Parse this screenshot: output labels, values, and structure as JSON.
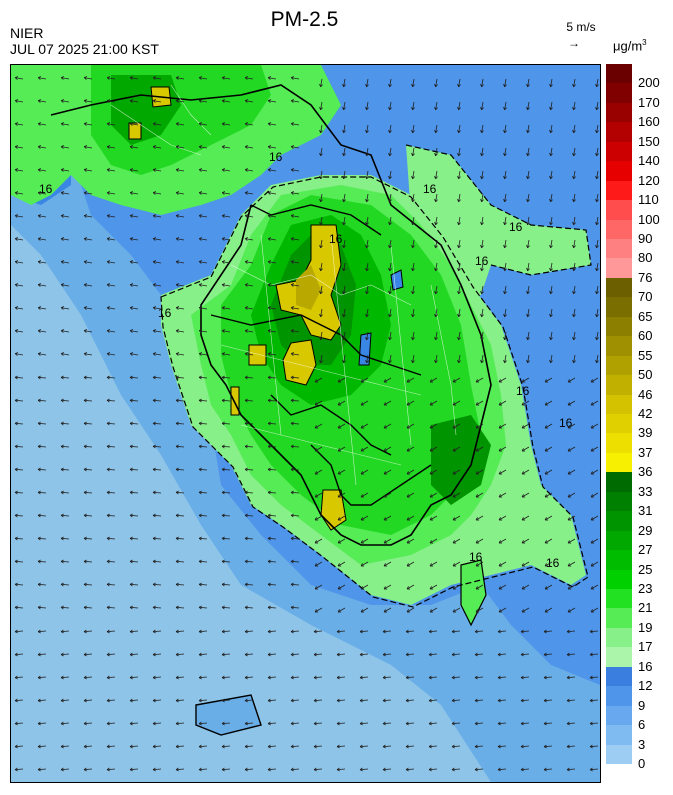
{
  "header": {
    "title": "PM-2.5",
    "agency": "NIER",
    "timestamp": "JUL 07 2025 21:00 KST",
    "wind_scale": "5 m/s",
    "wind_arrow": "→",
    "unit": "μg/m",
    "unit_sup": "3"
  },
  "map": {
    "contour_labels": [
      "16",
      "16",
      "16",
      "16",
      "16",
      "16",
      "16",
      "16",
      "16",
      "16",
      "16"
    ]
  },
  "legend": {
    "labels": [
      "200",
      "170",
      "160",
      "150",
      "140",
      "120",
      "110",
      "100",
      "90",
      "80",
      "76",
      "70",
      "65",
      "60",
      "55",
      "50",
      "46",
      "42",
      "39",
      "37",
      "36",
      "33",
      "31",
      "29",
      "27",
      "25",
      "23",
      "21",
      "19",
      "17",
      "16",
      "12",
      "9",
      "6",
      "3",
      "0"
    ],
    "colors": [
      "#6b0000",
      "#800000",
      "#990000",
      "#b30000",
      "#cc0000",
      "#e60000",
      "#ff1a1a",
      "#ff4d4d",
      "#ff6666",
      "#ff8080",
      "#ff9999",
      "#6b5f00",
      "#7a6e00",
      "#8c7f00",
      "#9e9000",
      "#b0a000",
      "#c2b000",
      "#d4c200",
      "#e0d000",
      "#ede000",
      "#f7f000",
      "#006b00",
      "#008000",
      "#009400",
      "#00a800",
      "#00bc00",
      "#00d000",
      "#22e022",
      "#55ec55",
      "#88f088",
      "#aaf5aa",
      "#3a7ee0",
      "#4f95ea",
      "#68a8ee",
      "#7fbaf0",
      "#9dcdf2"
    ]
  },
  "colors": {
    "sea_low": "#8ec4e8",
    "sea_mid": "#5aa0e6",
    "blue_12": "#3a86e4",
    "green_16": "#88f088",
    "green_19": "#55ec55",
    "green_21": "#22d822",
    "green_25": "#00b800",
    "green_29": "#009400",
    "yellow_37": "#d8c800",
    "yellow_42": "#b8a800"
  }
}
